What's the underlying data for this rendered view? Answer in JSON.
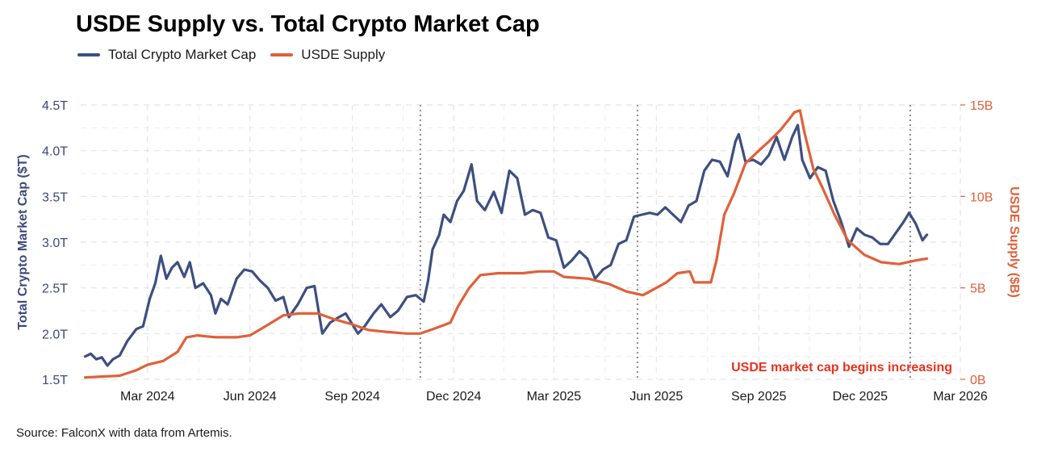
{
  "chart_data": {
    "type": "line",
    "title": "USDE Supply vs. Total Crypto Market Cap",
    "source": "Source: FalconX with data from Artemis.",
    "annotation": "USDE market cap begins increasing",
    "x_range": [
      "2024-01-01",
      "2026-03-01"
    ],
    "x_ticks": [
      "2024-03-01",
      "2024-06-01",
      "2024-09-01",
      "2024-12-01",
      "2025-03-01",
      "2025-06-01",
      "2025-09-01",
      "2025-12-01",
      "2026-03-01"
    ],
    "x_tick_labels": [
      "Mar 2024",
      "Jun 2024",
      "Sep 2024",
      "Dec 2024",
      "Mar 2025",
      "Jun 2025",
      "Sep 2025",
      "Dec 2025",
      "Mar 2026"
    ],
    "vlines": [
      "2024-11-01",
      "2025-05-15",
      "2026-01-15"
    ],
    "y_left": {
      "label": "Total Crypto Market Cap ($T)",
      "range": [
        1.5,
        4.5
      ],
      "ticks": [
        1.5,
        2.0,
        2.5,
        3.0,
        3.5,
        4.0,
        4.5
      ],
      "tick_labels": [
        "1.5T",
        "2.0T",
        "2.5T",
        "3.0T",
        "3.5T",
        "4.0T",
        "4.5T"
      ]
    },
    "y_right": {
      "label": "USDE Supply ($B)",
      "range": [
        0,
        15
      ],
      "ticks": [
        0,
        5,
        10,
        15
      ],
      "tick_labels": [
        "0B",
        "5B",
        "10B",
        "15B"
      ]
    },
    "series": [
      {
        "name": "Total Crypto Market Cap",
        "axis": "left",
        "color": "#3d4f80",
        "points": [
          [
            "2024-01-05",
            1.75
          ],
          [
            "2024-01-10",
            1.78
          ],
          [
            "2024-01-15",
            1.72
          ],
          [
            "2024-01-20",
            1.74
          ],
          [
            "2024-01-25",
            1.65
          ],
          [
            "2024-01-30",
            1.72
          ],
          [
            "2024-02-05",
            1.76
          ],
          [
            "2024-02-12",
            1.92
          ],
          [
            "2024-02-20",
            2.05
          ],
          [
            "2024-02-26",
            2.08
          ],
          [
            "2024-03-03",
            2.38
          ],
          [
            "2024-03-08",
            2.55
          ],
          [
            "2024-03-13",
            2.85
          ],
          [
            "2024-03-18",
            2.6
          ],
          [
            "2024-03-23",
            2.72
          ],
          [
            "2024-03-28",
            2.78
          ],
          [
            "2024-04-03",
            2.62
          ],
          [
            "2024-04-08",
            2.78
          ],
          [
            "2024-04-13",
            2.5
          ],
          [
            "2024-04-20",
            2.55
          ],
          [
            "2024-04-27",
            2.42
          ],
          [
            "2024-05-01",
            2.22
          ],
          [
            "2024-05-06",
            2.38
          ],
          [
            "2024-05-12",
            2.32
          ],
          [
            "2024-05-20",
            2.6
          ],
          [
            "2024-05-27",
            2.7
          ],
          [
            "2024-06-03",
            2.68
          ],
          [
            "2024-06-10",
            2.58
          ],
          [
            "2024-06-17",
            2.5
          ],
          [
            "2024-06-24",
            2.36
          ],
          [
            "2024-07-01",
            2.4
          ],
          [
            "2024-07-06",
            2.18
          ],
          [
            "2024-07-14",
            2.32
          ],
          [
            "2024-07-22",
            2.5
          ],
          [
            "2024-07-29",
            2.52
          ],
          [
            "2024-08-05",
            2.0
          ],
          [
            "2024-08-12",
            2.12
          ],
          [
            "2024-08-20",
            2.18
          ],
          [
            "2024-08-26",
            2.22
          ],
          [
            "2024-09-06",
            2.0
          ],
          [
            "2024-09-12",
            2.08
          ],
          [
            "2024-09-20",
            2.22
          ],
          [
            "2024-09-27",
            2.32
          ],
          [
            "2024-10-05",
            2.18
          ],
          [
            "2024-10-12",
            2.25
          ],
          [
            "2024-10-20",
            2.4
          ],
          [
            "2024-10-28",
            2.42
          ],
          [
            "2024-11-04",
            2.35
          ],
          [
            "2024-11-08",
            2.58
          ],
          [
            "2024-11-12",
            2.92
          ],
          [
            "2024-11-18",
            3.08
          ],
          [
            "2024-11-22",
            3.3
          ],
          [
            "2024-11-28",
            3.22
          ],
          [
            "2024-12-04",
            3.45
          ],
          [
            "2024-12-10",
            3.56
          ],
          [
            "2024-12-17",
            3.85
          ],
          [
            "2024-12-22",
            3.45
          ],
          [
            "2024-12-29",
            3.35
          ],
          [
            "2025-01-06",
            3.55
          ],
          [
            "2025-01-13",
            3.32
          ],
          [
            "2025-01-20",
            3.78
          ],
          [
            "2025-01-27",
            3.7
          ],
          [
            "2025-02-03",
            3.3
          ],
          [
            "2025-02-10",
            3.35
          ],
          [
            "2025-02-17",
            3.32
          ],
          [
            "2025-02-24",
            3.05
          ],
          [
            "2025-03-03",
            3.02
          ],
          [
            "2025-03-10",
            2.72
          ],
          [
            "2025-03-17",
            2.8
          ],
          [
            "2025-03-24",
            2.9
          ],
          [
            "2025-03-31",
            2.82
          ],
          [
            "2025-04-07",
            2.6
          ],
          [
            "2025-04-14",
            2.7
          ],
          [
            "2025-04-21",
            2.75
          ],
          [
            "2025-04-28",
            2.98
          ],
          [
            "2025-05-05",
            3.02
          ],
          [
            "2025-05-12",
            3.28
          ],
          [
            "2025-05-19",
            3.3
          ],
          [
            "2025-05-26",
            3.32
          ],
          [
            "2025-06-02",
            3.3
          ],
          [
            "2025-06-09",
            3.38
          ],
          [
            "2025-06-16",
            3.3
          ],
          [
            "2025-06-23",
            3.22
          ],
          [
            "2025-06-30",
            3.4
          ],
          [
            "2025-07-07",
            3.45
          ],
          [
            "2025-07-14",
            3.78
          ],
          [
            "2025-07-21",
            3.9
          ],
          [
            "2025-07-28",
            3.88
          ],
          [
            "2025-08-04",
            3.72
          ],
          [
            "2025-08-11",
            4.1
          ],
          [
            "2025-08-14",
            4.18
          ],
          [
            "2025-08-20",
            3.88
          ],
          [
            "2025-08-27",
            3.9
          ],
          [
            "2025-09-03",
            3.85
          ],
          [
            "2025-09-10",
            3.95
          ],
          [
            "2025-09-17",
            4.15
          ],
          [
            "2025-09-24",
            3.9
          ],
          [
            "2025-10-01",
            4.15
          ],
          [
            "2025-10-06",
            4.28
          ],
          [
            "2025-10-10",
            3.9
          ],
          [
            "2025-10-17",
            3.7
          ],
          [
            "2025-10-24",
            3.82
          ],
          [
            "2025-10-31",
            3.78
          ],
          [
            "2025-11-07",
            3.45
          ],
          [
            "2025-11-14",
            3.22
          ],
          [
            "2025-11-21",
            2.95
          ],
          [
            "2025-11-28",
            3.15
          ],
          [
            "2025-12-05",
            3.08
          ],
          [
            "2025-12-12",
            3.05
          ],
          [
            "2025-12-19",
            2.98
          ],
          [
            "2025-12-26",
            2.98
          ],
          [
            "2026-01-02",
            3.1
          ],
          [
            "2026-01-09",
            3.22
          ],
          [
            "2026-01-14",
            3.32
          ],
          [
            "2026-01-20",
            3.2
          ],
          [
            "2026-01-26",
            3.02
          ],
          [
            "2026-01-30",
            3.08
          ]
        ]
      },
      {
        "name": "USDE Supply",
        "axis": "right",
        "color": "#e0603a",
        "points": [
          [
            "2024-01-05",
            0.1
          ],
          [
            "2024-01-20",
            0.15
          ],
          [
            "2024-02-05",
            0.2
          ],
          [
            "2024-02-20",
            0.5
          ],
          [
            "2024-03-01",
            0.8
          ],
          [
            "2024-03-15",
            1.0
          ],
          [
            "2024-03-28",
            1.5
          ],
          [
            "2024-04-05",
            2.3
          ],
          [
            "2024-04-15",
            2.4
          ],
          [
            "2024-05-01",
            2.3
          ],
          [
            "2024-05-20",
            2.3
          ],
          [
            "2024-06-01",
            2.4
          ],
          [
            "2024-06-15",
            2.9
          ],
          [
            "2024-07-01",
            3.5
          ],
          [
            "2024-07-15",
            3.6
          ],
          [
            "2024-08-01",
            3.6
          ],
          [
            "2024-08-15",
            3.3
          ],
          [
            "2024-09-01",
            3.0
          ],
          [
            "2024-09-15",
            2.7
          ],
          [
            "2024-10-01",
            2.6
          ],
          [
            "2024-10-20",
            2.5
          ],
          [
            "2024-11-01",
            2.5
          ],
          [
            "2024-11-15",
            2.8
          ],
          [
            "2024-11-28",
            3.1
          ],
          [
            "2024-12-05",
            4.0
          ],
          [
            "2024-12-15",
            5.0
          ],
          [
            "2024-12-25",
            5.7
          ],
          [
            "2025-01-10",
            5.8
          ],
          [
            "2025-02-01",
            5.8
          ],
          [
            "2025-02-15",
            5.9
          ],
          [
            "2025-03-01",
            5.9
          ],
          [
            "2025-03-10",
            5.6
          ],
          [
            "2025-04-01",
            5.5
          ],
          [
            "2025-04-20",
            5.2
          ],
          [
            "2025-05-05",
            4.8
          ],
          [
            "2025-05-20",
            4.6
          ],
          [
            "2025-06-01",
            5.0
          ],
          [
            "2025-06-10",
            5.3
          ],
          [
            "2025-06-20",
            5.8
          ],
          [
            "2025-07-01",
            5.9
          ],
          [
            "2025-07-05",
            5.3
          ],
          [
            "2025-07-20",
            5.3
          ],
          [
            "2025-07-25",
            6.5
          ],
          [
            "2025-08-01",
            9.0
          ],
          [
            "2025-08-10",
            10.2
          ],
          [
            "2025-08-20",
            11.8
          ],
          [
            "2025-09-01",
            12.5
          ],
          [
            "2025-09-10",
            13.0
          ],
          [
            "2025-09-20",
            13.6
          ],
          [
            "2025-09-28",
            14.2
          ],
          [
            "2025-10-03",
            14.6
          ],
          [
            "2025-10-08",
            14.7
          ],
          [
            "2025-10-12",
            13.5
          ],
          [
            "2025-10-20",
            11.5
          ],
          [
            "2025-10-28",
            10.5
          ],
          [
            "2025-11-08",
            9.0
          ],
          [
            "2025-11-20",
            7.6
          ],
          [
            "2025-12-05",
            6.8
          ],
          [
            "2025-12-20",
            6.4
          ],
          [
            "2026-01-05",
            6.3
          ],
          [
            "2026-01-20",
            6.5
          ],
          [
            "2026-01-30",
            6.6
          ]
        ]
      }
    ]
  }
}
